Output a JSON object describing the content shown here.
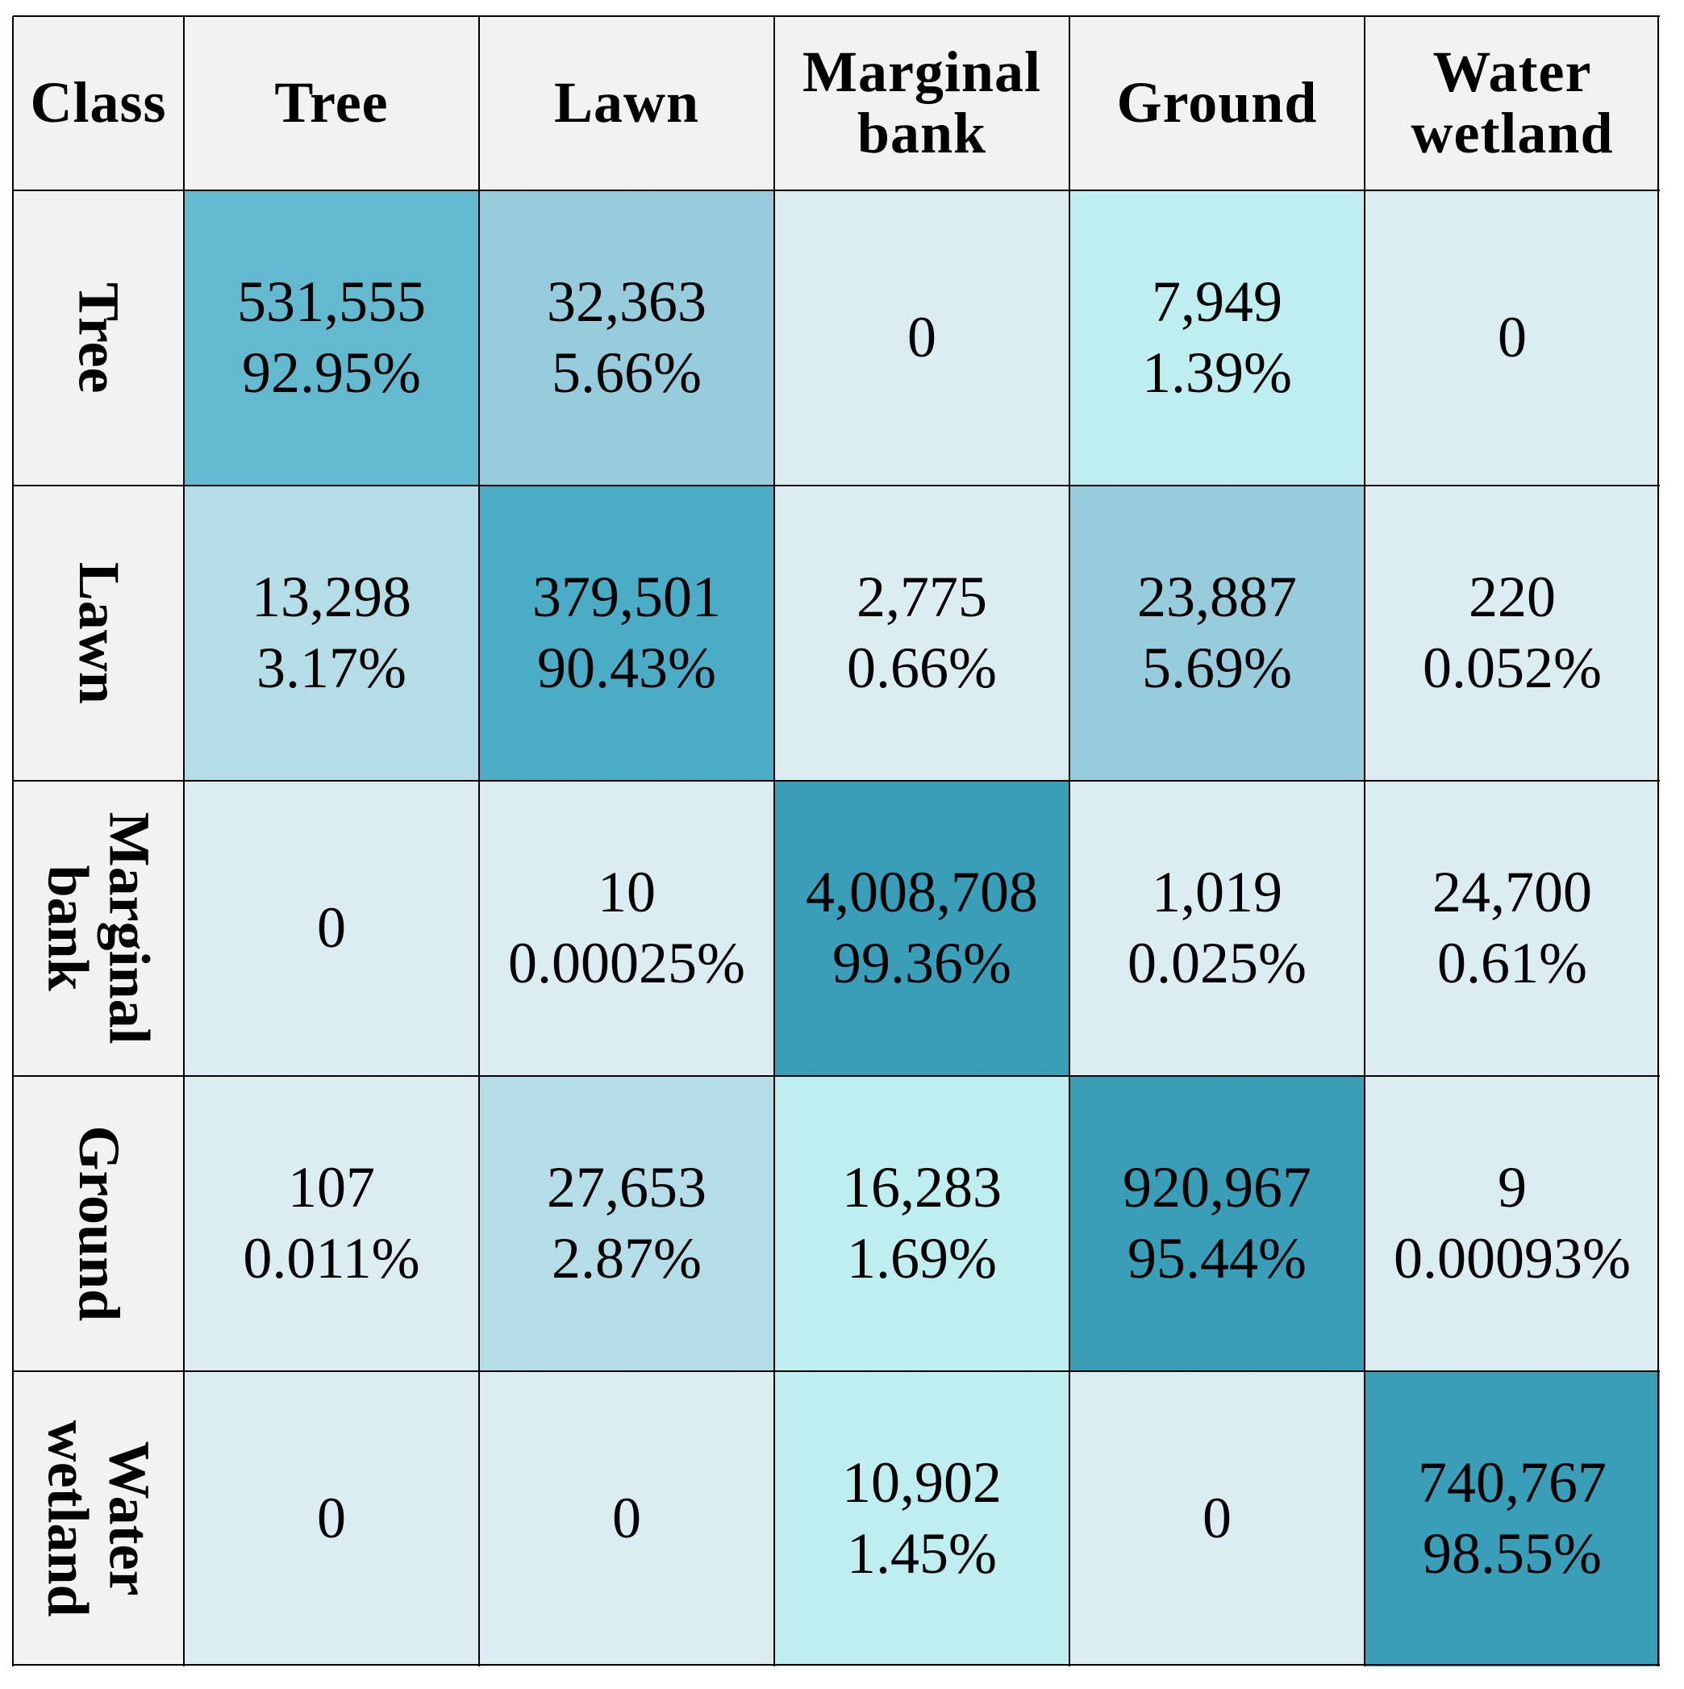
{
  "chart_data": {
    "type": "heatmap",
    "title": "",
    "corner_label": "Class",
    "column_labels": [
      [
        "Tree"
      ],
      [
        "Lawn"
      ],
      [
        "Marginal",
        "bank"
      ],
      [
        "Ground"
      ],
      [
        "Water",
        "wetland"
      ]
    ],
    "row_labels": [
      [
        "Tree"
      ],
      [
        "Lawn"
      ],
      [
        "Marginal",
        "bank"
      ],
      [
        "Ground"
      ],
      [
        "Water",
        "wetland"
      ]
    ],
    "counts": [
      [
        "531,555",
        "32,363",
        "0",
        "7,949",
        "0"
      ],
      [
        "13,298",
        "379,501",
        "2,775",
        "23,887",
        "220"
      ],
      [
        "0",
        "10",
        "4,008,708",
        "1,019",
        "24,700"
      ],
      [
        "107",
        "27,653",
        "16,283",
        "920,967",
        "9"
      ],
      [
        "0",
        "0",
        "10,902",
        "0",
        "740,767"
      ]
    ],
    "percentages": [
      [
        "92.95%",
        "5.66%",
        "",
        "1.39%",
        ""
      ],
      [
        "3.17%",
        "90.43%",
        "0.66%",
        "5.69%",
        "0.052%"
      ],
      [
        "",
        "0.00025%",
        "99.36%",
        "0.025%",
        "0.61%"
      ],
      [
        "0.011%",
        "2.87%",
        "1.69%",
        "95.44%",
        "0.00093%"
      ],
      [
        "",
        "",
        "1.45%",
        "",
        "98.55%"
      ]
    ],
    "cell_colors": [
      [
        "#63b9cd",
        "#96ccdb",
        "#dcedf2",
        "#bfeef0",
        "#dcedf2"
      ],
      [
        "#b5dde7",
        "#4badc5",
        "#dcedf2",
        "#96ccdb",
        "#dcedf2"
      ],
      [
        "#dcedf2",
        "#dcedf2",
        "#399fb9",
        "#dcedf2",
        "#dcedf2"
      ],
      [
        "#dcedf2",
        "#b5dde7",
        "#bfeef0",
        "#399fb9",
        "#dcedf2"
      ],
      [
        "#dcedf2",
        "#dcedf2",
        "#bfeef0",
        "#dcedf2",
        "#399fb9"
      ]
    ],
    "header_color": "#f2f2f2"
  }
}
